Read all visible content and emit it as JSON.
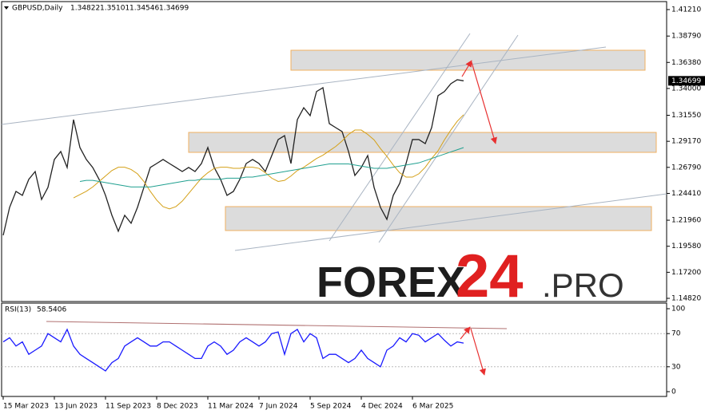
{
  "header": {
    "symbol": "GBPUSD,Daily",
    "open": 1.34822,
    "high": 1.35101,
    "low": 1.34546,
    "close": 1.34699
  },
  "watermark": {
    "brand": "FOREX",
    "number": "24",
    "domain": ".PRO"
  },
  "chart_data": [
    {
      "type": "line",
      "x": [
        "15 Mar 2023",
        null,
        null,
        null,
        null,
        null,
        null,
        null,
        "13 Jun 2023",
        null,
        null,
        null,
        null,
        null,
        null,
        null,
        "11 Sep 2023",
        null,
        null,
        null,
        null,
        null,
        null,
        null,
        "8 Dec 2023",
        null,
        null,
        null,
        null,
        null,
        null,
        null,
        "11 Mar 2024",
        null,
        null,
        null,
        null,
        null,
        null,
        null,
        "7 Jun 2024",
        null,
        null,
        null,
        null,
        null,
        null,
        null,
        "5 Sep 2024",
        null,
        null,
        null,
        null,
        null,
        null,
        null,
        "4 Dec 2024",
        null,
        null,
        null,
        null,
        null,
        null,
        null,
        "6 Mar 2025",
        null,
        null,
        null,
        null,
        null,
        null,
        null,
        null
      ],
      "series": [
        {
          "color": "#222222",
          "values": [
            1.2058,
            1.2313,
            1.2459,
            1.2423,
            1.2569,
            1.2641,
            1.2386,
            1.2496,
            1.2751,
            1.2824,
            1.2678,
            1.3115,
            1.286,
            1.2751,
            1.2678,
            1.2569,
            1.2423,
            1.2241,
            1.2095,
            1.2241,
            1.2168,
            1.2313,
            1.2496,
            1.2678,
            1.2714,
            1.2751,
            1.2714,
            1.2678,
            1.2641,
            1.2678,
            1.2641,
            1.2714,
            1.286,
            1.2678,
            1.2569,
            1.2423,
            1.2459,
            1.2569,
            1.2714,
            1.2751,
            1.2714,
            1.2641,
            1.2787,
            1.2933,
            1.2969,
            1.2714,
            1.3115,
            1.3224,
            1.3152,
            1.3372,
            1.3407,
            1.3079,
            1.3042,
            1.3006,
            1.2824,
            1.2605,
            1.2678,
            1.2787,
            1.2496,
            1.2313,
            1.2204,
            1.2423,
            1.2532,
            1.2714,
            1.2933,
            1.2933,
            1.2896,
            1.3042,
            1.3334,
            1.3372,
            1.3443,
            1.348,
            1.34699
          ]
        },
        {
          "color": "#d4a017",
          "values": [
            null,
            null,
            null,
            null,
            null,
            null,
            null,
            null,
            null,
            null,
            null,
            1.24,
            1.243,
            1.246,
            1.25,
            1.255,
            1.26,
            1.265,
            1.268,
            1.268,
            1.266,
            1.262,
            1.255,
            1.246,
            1.238,
            1.232,
            1.23,
            1.232,
            1.237,
            1.244,
            1.251,
            1.258,
            1.263,
            1.267,
            1.268,
            1.268,
            1.267,
            1.267,
            1.268,
            1.268,
            1.267,
            1.263,
            1.258,
            1.255,
            1.256,
            1.26,
            1.265,
            1.268,
            1.272,
            1.276,
            1.279,
            1.283,
            1.287,
            1.292,
            1.298,
            1.302,
            1.302,
            1.298,
            1.293,
            1.285,
            1.278,
            1.27,
            1.263,
            1.259,
            1.259,
            1.262,
            1.268,
            1.276,
            1.283,
            1.293,
            1.302,
            1.31,
            1.316
          ]
        },
        {
          "color": "#20a090",
          "values": [
            null,
            null,
            null,
            null,
            null,
            null,
            null,
            null,
            null,
            null,
            null,
            null,
            1.255,
            1.256,
            1.256,
            1.255,
            1.254,
            1.253,
            1.252,
            1.251,
            1.25,
            1.25,
            1.25,
            1.25,
            1.251,
            1.252,
            1.253,
            1.254,
            1.255,
            1.256,
            1.256,
            1.257,
            1.257,
            1.257,
            1.257,
            1.258,
            1.258,
            1.258,
            1.259,
            1.259,
            1.26,
            1.261,
            1.262,
            1.263,
            1.264,
            1.265,
            1.266,
            1.267,
            1.268,
            1.269,
            1.27,
            1.271,
            1.271,
            1.271,
            1.271,
            1.27,
            1.269,
            1.268,
            1.267,
            1.267,
            1.267,
            1.268,
            1.269,
            1.27,
            1.271,
            1.272,
            1.274,
            1.276,
            1.278,
            1.28,
            1.282,
            1.284,
            1.286
          ]
        }
      ],
      "ylim": [
        1.1482,
        1.4121
      ],
      "yticks": [
        {
          "value": 1.4121,
          "label": "1.41210"
        },
        {
          "value": 1.3879,
          "label": "1.38790"
        },
        {
          "value": 1.3638,
          "label": "1.36380"
        },
        {
          "value": 1.34,
          "label": "1.34000"
        },
        {
          "value": 1.3155,
          "label": "1.31550"
        },
        {
          "value": 1.2917,
          "label": "1.29170"
        },
        {
          "value": 1.2679,
          "label": "1.26790"
        },
        {
          "value": 1.2441,
          "label": "1.24410"
        },
        {
          "value": 1.2196,
          "label": "1.21960"
        },
        {
          "value": 1.1958,
          "label": "1.19580"
        },
        {
          "value": 1.172,
          "label": "1.17200"
        },
        {
          "value": 1.1482,
          "label": "1.14820"
        }
      ]
    },
    {
      "type": "line",
      "title": "RSI(13)",
      "series": [
        {
          "color": "#1a1aff",
          "values": [
            60,
            65,
            55,
            60,
            45,
            50,
            55,
            70,
            65,
            60,
            75,
            55,
            45,
            40,
            35,
            30,
            25,
            35,
            40,
            55,
            60,
            65,
            60,
            55,
            55,
            60,
            60,
            55,
            50,
            45,
            40,
            40,
            55,
            60,
            55,
            45,
            50,
            60,
            65,
            60,
            55,
            60,
            70,
            72,
            45,
            70,
            75,
            60,
            70,
            65,
            40,
            45,
            45,
            40,
            35,
            40,
            50,
            40,
            35,
            30,
            50,
            55,
            65,
            60,
            70,
            68,
            60,
            65,
            70,
            62,
            55,
            60,
            58.5406
          ]
        }
      ],
      "ylim": [
        0,
        100
      ],
      "yticks": [
        100,
        70,
        30,
        0
      ],
      "levels": [
        70,
        30
      ]
    }
  ]
}
